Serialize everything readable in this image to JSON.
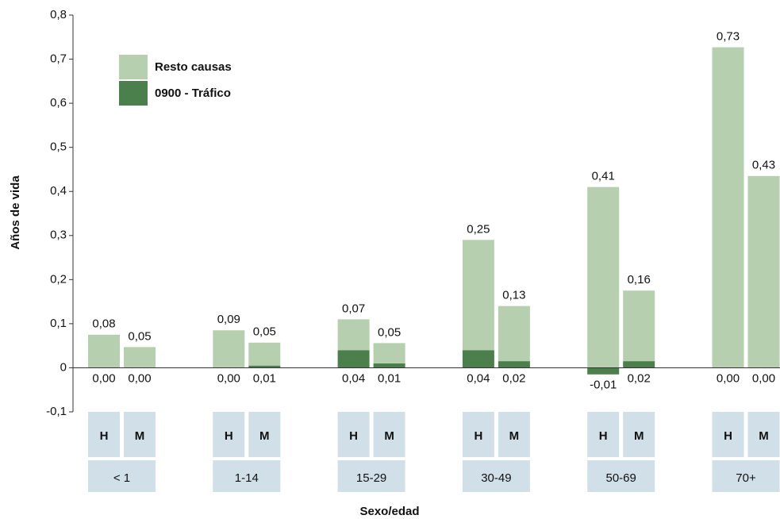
{
  "chart_data": {
    "type": "stacked_bar",
    "y_label": "Años de vida",
    "x_label": "Sexo/edad",
    "categories": [
      "H",
      "M",
      "H",
      "M",
      "H",
      "M",
      "H",
      "M",
      "H",
      "M",
      "H",
      "M"
    ],
    "groups": [
      "< 1",
      "1-14",
      "15-29",
      "30-49",
      "50-69",
      "70+"
    ],
    "series": [
      {
        "name": "0900 - Tráfico",
        "color": "#4b7f4c",
        "values": [
          0,
          0,
          0,
          0.005,
          0.04,
          0.01,
          0.04,
          0.015,
          -0.015,
          0.015,
          0,
          0
        ],
        "value_labels": [
          "0,00",
          "0,00",
          "0,00",
          "0,01",
          "0,04",
          "0,01",
          "0,04",
          "0,02",
          "-0,01",
          "0,02",
          "0,00",
          "0,00"
        ]
      },
      {
        "name": "Resto causas",
        "color": "#b6cfaf",
        "values": [
          0.075,
          0.047,
          0.085,
          0.052,
          0.07,
          0.046,
          0.25,
          0.125,
          0.41,
          0.16,
          0.727,
          0.435
        ],
        "value_labels": [
          "0,08",
          "0,05",
          "0,09",
          "0,05",
          "0,07",
          "0,05",
          "0,25",
          "0,13",
          "0,41",
          "0,16",
          "0,73",
          "0,43"
        ]
      }
    ],
    "ylim": [
      -0.1,
      0.8
    ],
    "yticks": [
      {
        "value": -0.1,
        "label": "-0,1"
      },
      0,
      {
        "value": 0.1,
        "label": "0,1"
      },
      {
        "value": 0.2,
        "label": "0,2"
      },
      {
        "value": 0.3,
        "label": "0,3"
      },
      {
        "value": 0.4,
        "label": "0,4"
      },
      {
        "value": 0.5,
        "label": "0,5"
      },
      {
        "value": 0.6,
        "label": "0,6"
      },
      {
        "value": 0.7,
        "label": "0,7"
      },
      {
        "value": 0.8,
        "label": "0,8"
      }
    ],
    "grid": false,
    "legend": "top-left"
  }
}
